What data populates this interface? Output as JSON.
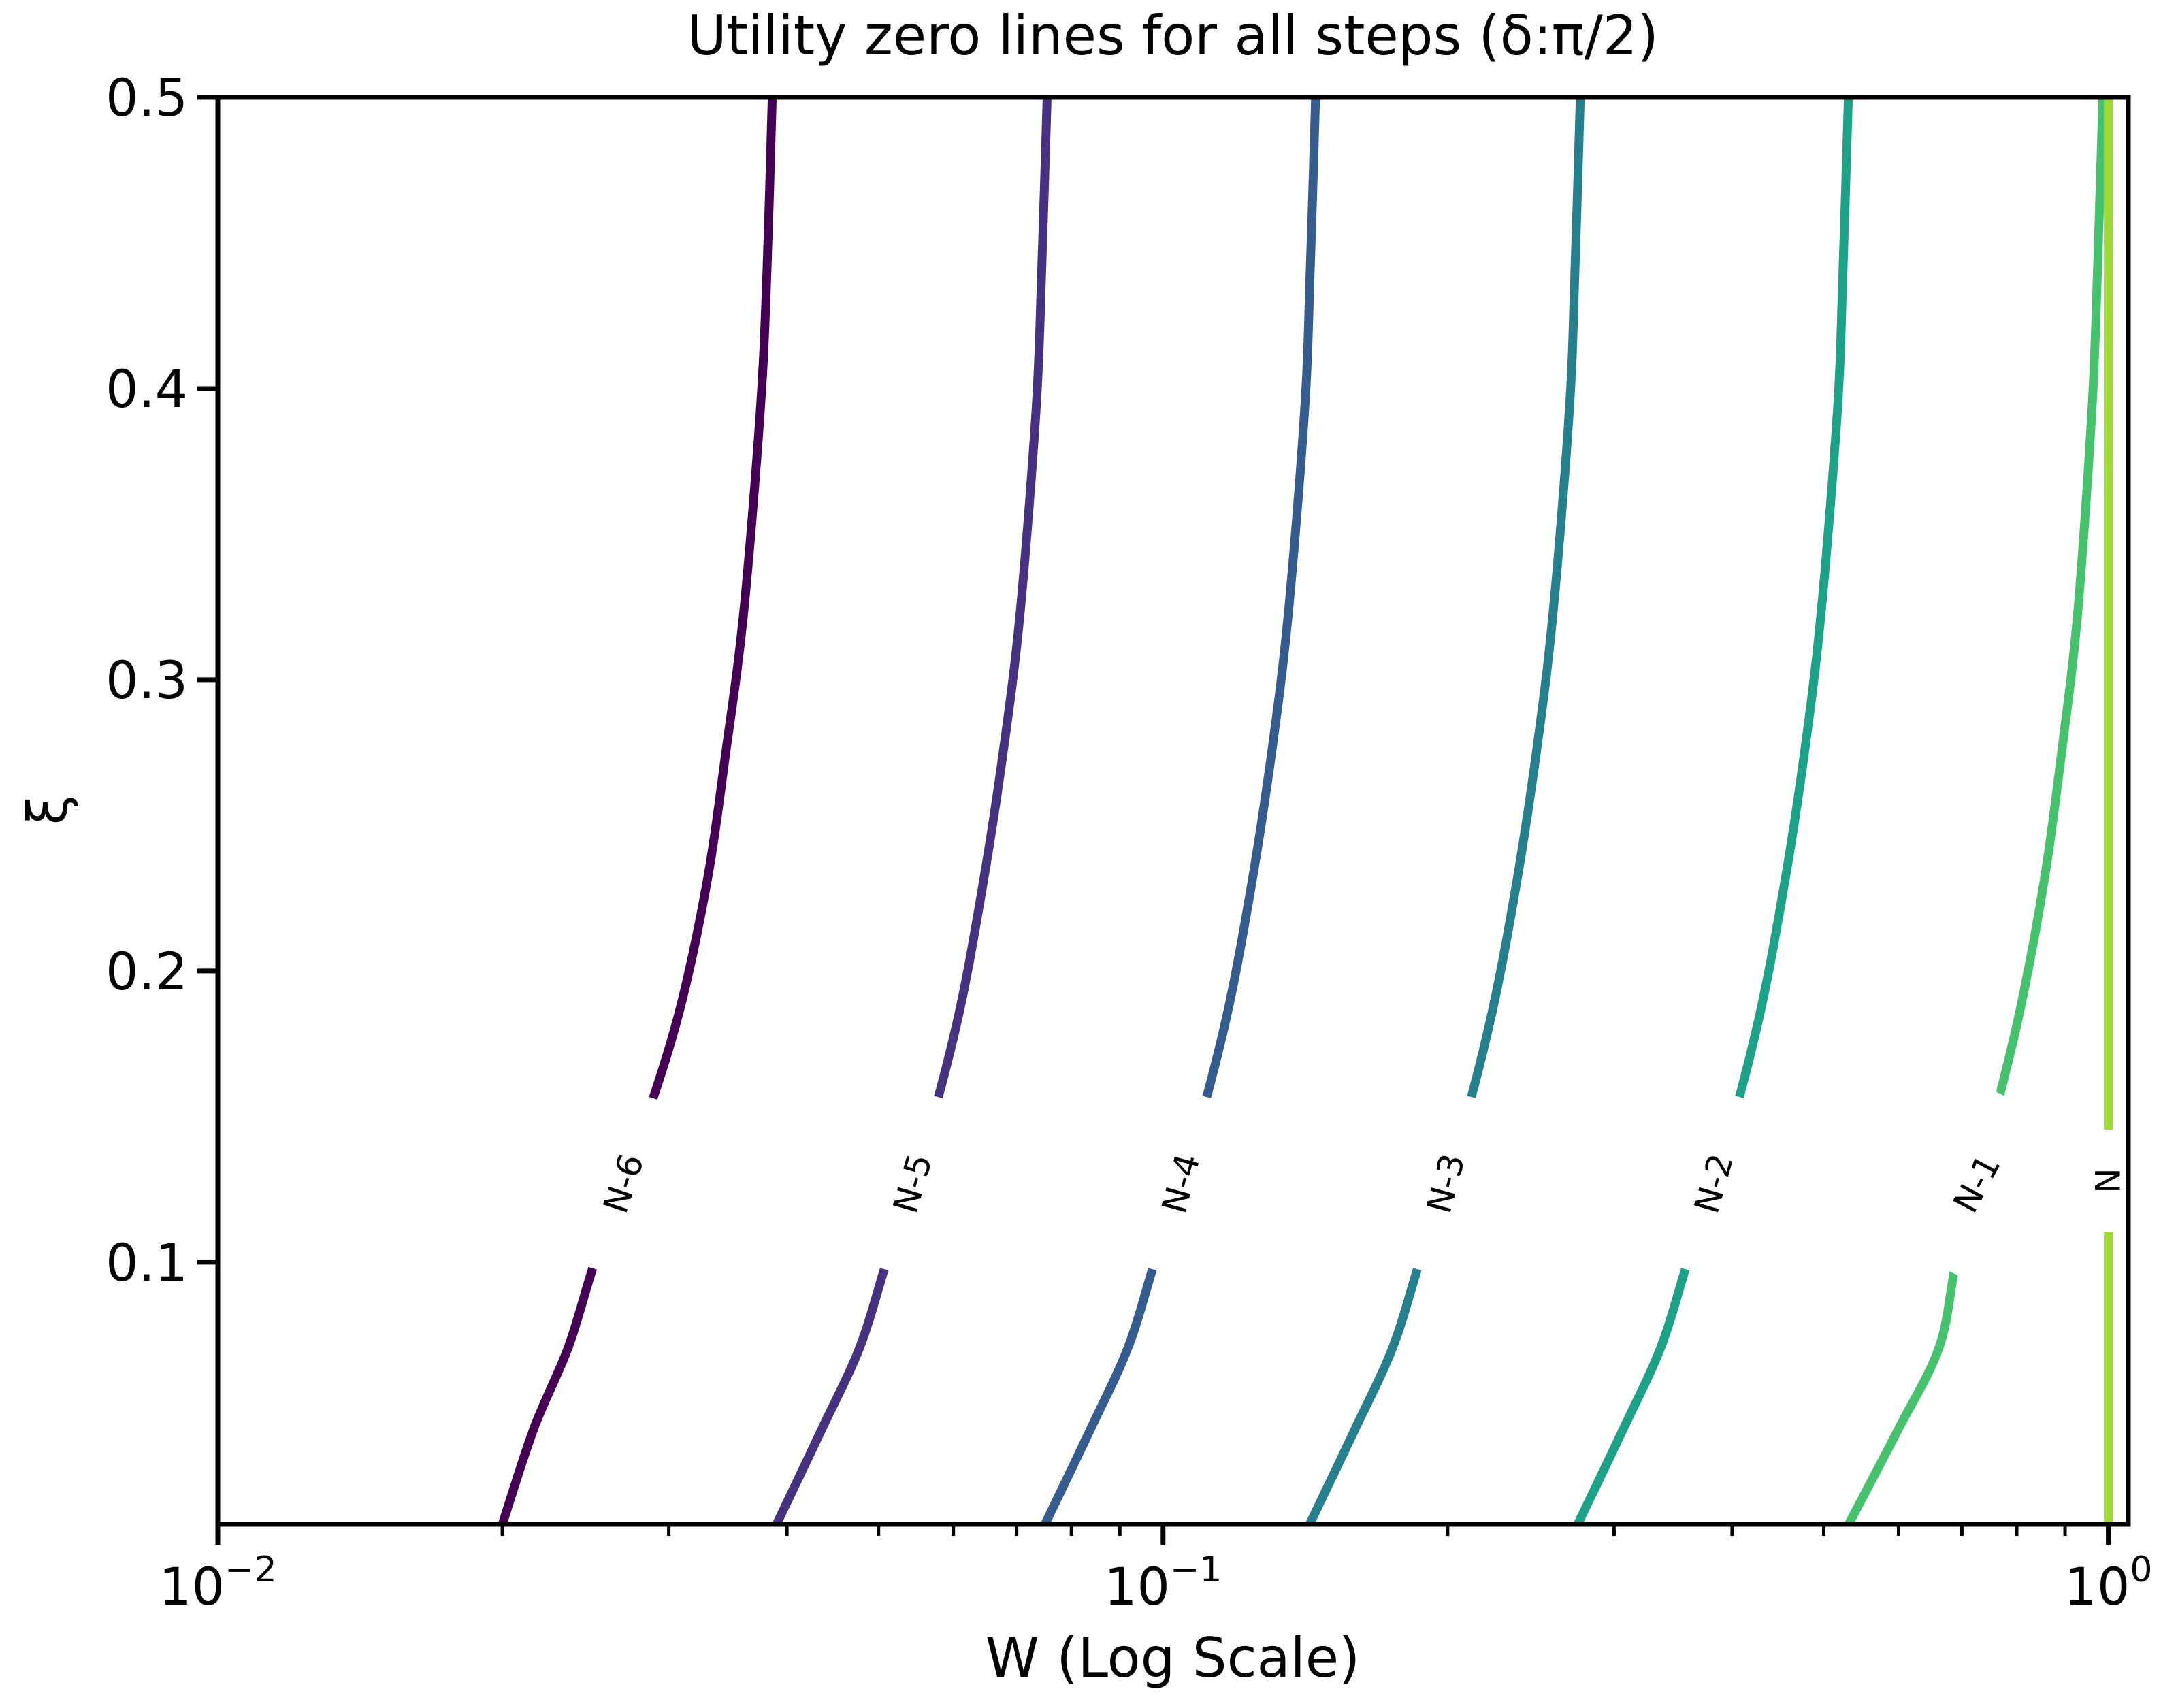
{
  "chart_data": {
    "type": "line",
    "subtype": "contour-zero-lines",
    "title": "Utility zero lines for all steps (δ:π/2)",
    "xlabel": "W (Log Scale)",
    "ylabel": "ξ",
    "x_scale": "log",
    "xlim": [
      0.01,
      1.05
    ],
    "ylim": [
      0.01,
      0.5
    ],
    "grid": false,
    "legend": "inline-contour-labels",
    "x_major_ticks": [
      {
        "value": 0.01,
        "base": "10",
        "exp": "−2"
      },
      {
        "value": 0.1,
        "base": "10",
        "exp": "−1"
      },
      {
        "value": 1.0,
        "base": "10",
        "exp": "0"
      }
    ],
    "x_minor_ticks": [
      0.02,
      0.03,
      0.04,
      0.05,
      0.06,
      0.07,
      0.08,
      0.09,
      0.2,
      0.3,
      0.4,
      0.5,
      0.6,
      0.7,
      0.8,
      0.9
    ],
    "y_ticks": [
      {
        "value": 0.5,
        "label": "0.5"
      },
      {
        "value": 0.4,
        "label": "0.4"
      },
      {
        "value": 0.3,
        "label": "0.3"
      },
      {
        "value": 0.2,
        "label": "0.2"
      },
      {
        "value": 0.1,
        "label": "0.1"
      }
    ],
    "xi": [
      0.5,
      0.44,
      0.393,
      0.323,
      0.276,
      0.23,
      0.183,
      0.136,
      0.101,
      0.071,
      0.043,
      0.01
    ],
    "series": [
      {
        "label": "N-6",
        "color": "#440154",
        "label_xi": 0.127,
        "label_angle": -72,
        "gap_len": 265,
        "w": [
          0.0386,
          0.0381,
          0.0375,
          0.036,
          0.0345,
          0.0329,
          0.0306,
          0.0275,
          0.0251,
          0.0235,
          0.0216,
          0.02
        ]
      },
      {
        "label": "N-5",
        "color": "#46327e",
        "label_xi": 0.127,
        "label_angle": -74,
        "gap_len": 265,
        "w": [
          0.0754,
          0.0744,
          0.0734,
          0.0706,
          0.0678,
          0.0645,
          0.0606,
          0.0555,
          0.0511,
          0.0478,
          0.0436,
          0.039
        ]
      },
      {
        "label": "N-4",
        "color": "#365c8d",
        "label_xi": 0.127,
        "label_angle": -75,
        "gap_len": 265,
        "w": [
          0.145,
          0.1431,
          0.1412,
          0.1357,
          0.1304,
          0.1241,
          0.1165,
          0.1067,
          0.0982,
          0.0919,
          0.0839,
          0.075
        ]
      },
      {
        "label": "N-3",
        "color": "#277f8e",
        "label_xi": 0.127,
        "label_angle": -75,
        "gap_len": 265,
        "w": [
          0.2763,
          0.2727,
          0.2691,
          0.2586,
          0.2485,
          0.2365,
          0.2219,
          0.2034,
          0.1872,
          0.1751,
          0.1598,
          0.1429
        ]
      },
      {
        "label": "N-2",
        "color": "#1fa188",
        "label_xi": 0.127,
        "label_angle": -74,
        "gap_len": 265,
        "w": [
          0.5309,
          0.5239,
          0.517,
          0.4968,
          0.4775,
          0.4544,
          0.4264,
          0.3907,
          0.3596,
          0.3364,
          0.3071,
          0.2746
        ]
      },
      {
        "label": "N-1",
        "color": "#47c16e",
        "label_xi": 0.127,
        "label_angle": -62,
        "gap_len": 265,
        "w": [
          0.9868,
          0.9738,
          0.961,
          0.9281,
          0.8932,
          0.8543,
          0.8021,
          0.7383,
          0.6912,
          0.6627,
          0.6004,
          0.5312
        ]
      },
      {
        "label": "N",
        "color": "#a0da39",
        "label_xi": 0.128,
        "label_angle": -90,
        "gap_len": 150,
        "w": [
          1.0,
          1.0,
          1.0,
          1.0,
          1.0,
          1.0,
          1.0,
          1.0,
          1.0,
          1.0,
          1.0,
          1.0
        ]
      }
    ],
    "styles": {
      "line_width": 13,
      "spine_width": 7,
      "spine_color": "#000000",
      "background": "#ffffff",
      "contour_label_font": 50,
      "gap_thickness": 84
    }
  }
}
